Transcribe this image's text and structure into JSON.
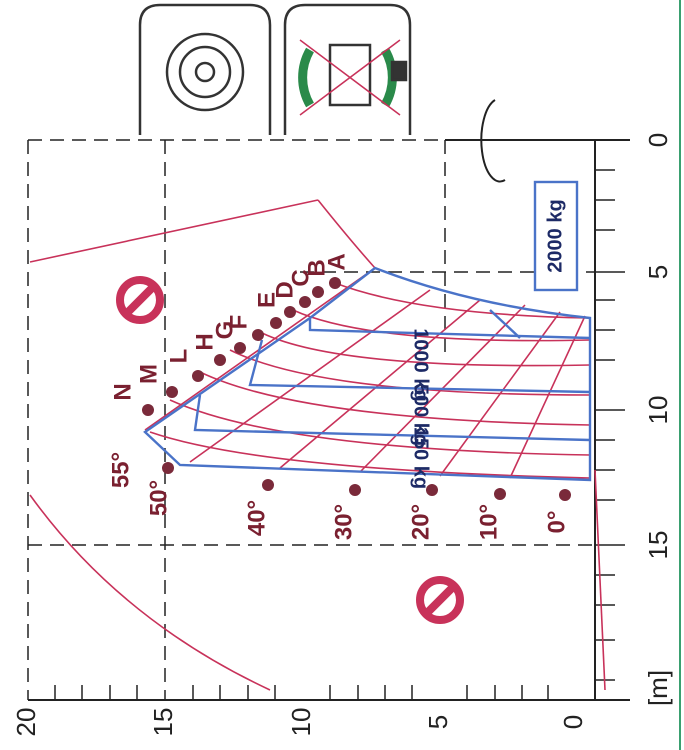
{
  "axis": {
    "radius_labels": [
      "0",
      "5",
      "10",
      "15"
    ],
    "unit": "[m]",
    "height_labels": [
      "20",
      "15",
      "10",
      "5",
      "0"
    ]
  },
  "loads": [
    "2000 kg",
    "1000 kg",
    "500 kg",
    "150 kg"
  ],
  "angles": [
    "55°",
    "50°",
    "40°",
    "30°",
    "20°",
    "10°",
    "0°"
  ],
  "positions": [
    "A",
    "B",
    "C",
    "D",
    "E",
    "F",
    "G",
    "H",
    "L",
    "M",
    "N"
  ]
}
